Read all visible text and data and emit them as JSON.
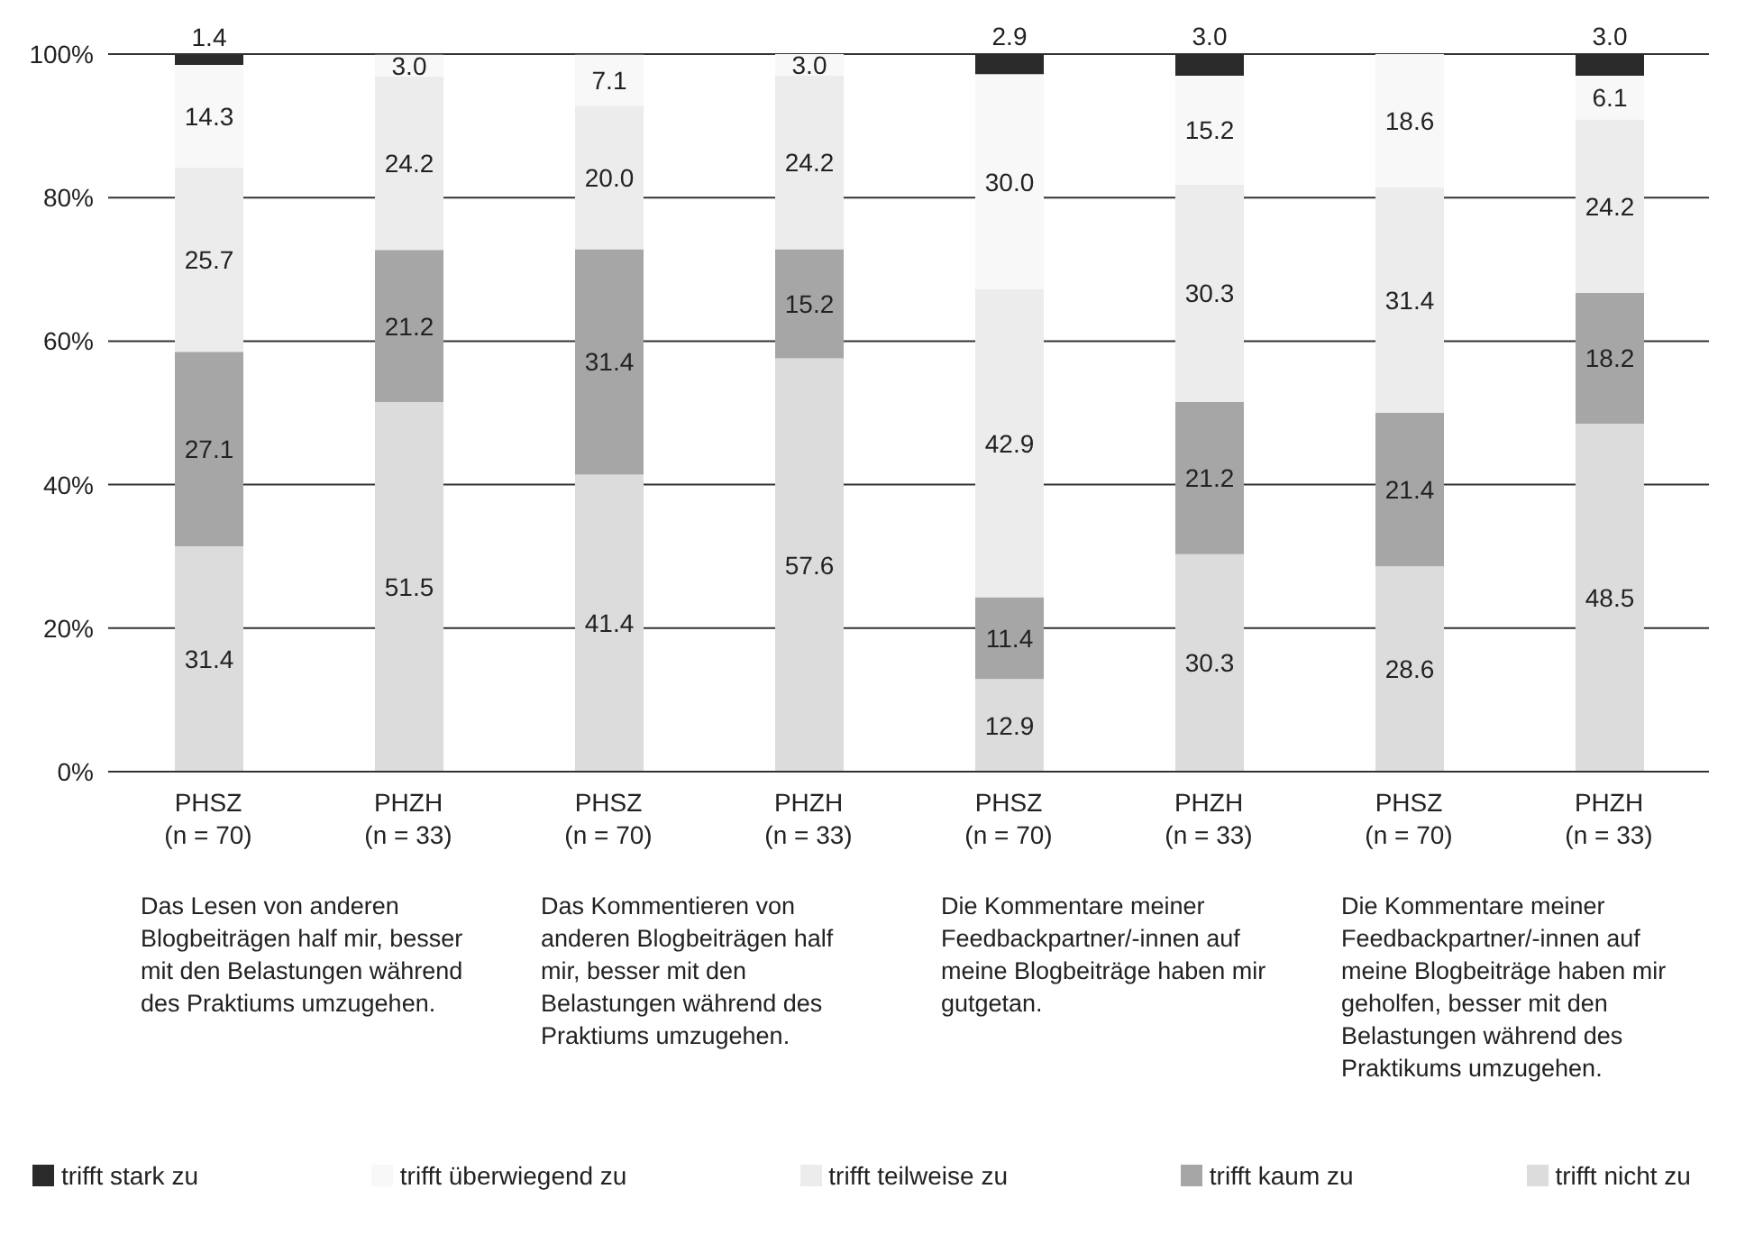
{
  "chart_data": {
    "type": "bar",
    "stacked": true,
    "categories": [
      "PHSZ\n(n = 70)",
      "PHZH\n(n = 33)",
      "PHSZ\n(n = 70)",
      "PHZH\n(n = 33)",
      "PHSZ\n(n = 70)",
      "PHZH\n(n = 33)",
      "PHSZ\n(n = 70)",
      "PHZH\n(n = 33)"
    ],
    "series": [
      {
        "name": "trifft nicht zu",
        "color": "#dcdcdc",
        "values": [
          31.4,
          51.5,
          41.4,
          57.6,
          12.9,
          30.3,
          28.6,
          48.5
        ],
        "value_labels": [
          "31.4",
          "51.5",
          "41.4",
          "57.6",
          "12.9",
          "30.3",
          "28.6",
          "48.5"
        ]
      },
      {
        "name": "trifft kaum zu",
        "color": "#a6a6a6",
        "values": [
          27.1,
          21.2,
          31.4,
          15.2,
          11.4,
          21.2,
          21.4,
          18.2
        ],
        "value_labels": [
          "27.1",
          "21.2",
          "31.4",
          "15.2",
          "11.4",
          "21.2",
          "21.4",
          "18.2"
        ]
      },
      {
        "name": "trifft teilweise zu",
        "color": "#ececec",
        "values": [
          25.7,
          24.2,
          20.0,
          24.2,
          42.9,
          30.3,
          31.4,
          24.2
        ],
        "value_labels": [
          "25.7",
          "24.2",
          "20.0",
          "24.2",
          "42.9",
          "30.3",
          "31.4",
          "24.2"
        ]
      },
      {
        "name": "trifft überwiegend zu",
        "color": "#f8f8f8",
        "values": [
          14.3,
          3.0,
          7.1,
          3.0,
          30.0,
          15.2,
          18.6,
          6.1
        ],
        "value_labels": [
          "14.3",
          "3.0",
          "7.1",
          "3.0",
          "30.0",
          "15.2",
          "18.6",
          "6.1"
        ]
      },
      {
        "name": "trifft stark zu",
        "color": "#2a2a2a",
        "values": [
          1.4,
          null,
          null,
          null,
          2.9,
          3.0,
          null,
          3.0
        ],
        "value_labels": [
          "1.4",
          null,
          null,
          null,
          "2.9",
          "3.0",
          null,
          "3.0"
        ]
      }
    ],
    "ylim": [
      0,
      100
    ],
    "yticks": [
      {
        "value": 0,
        "label": "0%"
      },
      {
        "value": 20,
        "label": "20%"
      },
      {
        "value": 40,
        "label": "40%"
      },
      {
        "value": 60,
        "label": "60%"
      },
      {
        "value": 80,
        "label": "80%"
      },
      {
        "value": 100,
        "label": "100%"
      }
    ],
    "grid": "y",
    "legend": "bottom",
    "annotations": [
      "Das Lesen von anderen Blogbeiträgen half mir, besser mit den Belastungen während des Praktiums umzugehen.",
      "Das Kommentieren von anderen Blogbeiträgen half mir, besser mit den Belastungen während des Praktiums umzugehen.",
      "Die Kommentare meiner Feedbackpartner/-innen auf meine Blogbeiträge haben mir gutgetan.",
      "Die Kommentare meiner Feedbackpartner/-innen auf meine Blogbeiträge haben mir geholfen, besser mit den Belastungen während des Praktikums umzugehen."
    ]
  }
}
